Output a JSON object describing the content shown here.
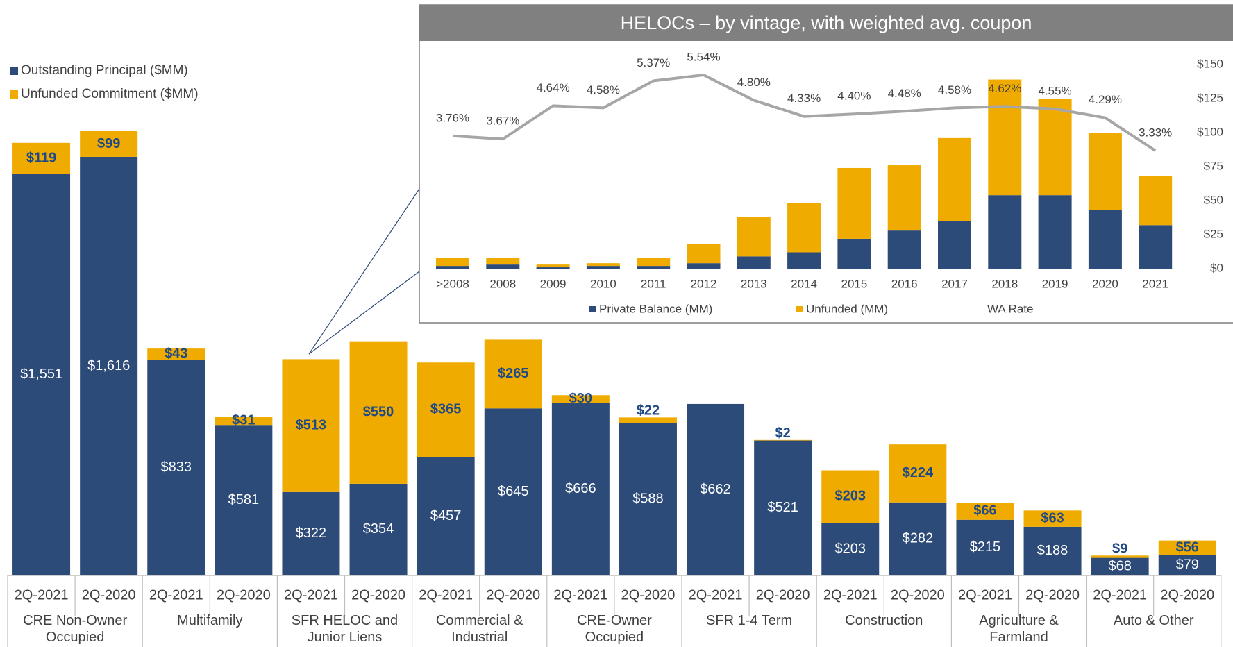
{
  "chart_data": [
    {
      "type": "bar",
      "stacked": true,
      "categories": [
        "2Q-2021",
        "2Q-2020",
        "2Q-2021",
        "2Q-2020",
        "2Q-2021",
        "2Q-2020",
        "2Q-2021",
        "2Q-2020",
        "2Q-2021",
        "2Q-2020",
        "2Q-2021",
        "2Q-2020",
        "2Q-2021",
        "2Q-2020",
        "2Q-2021",
        "2Q-2020",
        "2Q-2021",
        "2Q-2020"
      ],
      "groups": [
        "CRE Non-Owner Occupied",
        "Multifamily",
        "SFR HELOC and Junior Liens",
        "Commercial & Industrial",
        "CRE-Owner Occupied",
        "SFR 1-4 Term",
        "Construction",
        "Agriculture & Farmland",
        "Auto & Other"
      ],
      "legend": "top-left",
      "series": [
        {
          "name": "Outstanding Principal ($MM)",
          "color": "#2d4b78",
          "values": [
            1551,
            1616,
            833,
            581,
            322,
            354,
            457,
            645,
            666,
            588,
            662,
            521,
            203,
            282,
            215,
            188,
            68,
            79
          ],
          "value_labels": [
            "$1,551",
            "$1,616",
            "$833",
            "$581",
            "$322",
            "$354",
            "$457",
            "$645",
            "$666",
            "$588",
            "$662",
            "$521",
            "$203",
            "$282",
            "$215",
            "$188",
            "$68",
            "$79"
          ]
        },
        {
          "name": "Unfunded Commitment ($MM)",
          "color": "#f0ab00",
          "values": [
            119,
            99,
            43,
            31,
            513,
            550,
            365,
            265,
            30,
            22,
            null,
            2,
            203,
            224,
            66,
            63,
            9,
            56
          ],
          "value_labels": [
            "$119",
            "$99",
            "$43",
            "$31",
            "$513",
            "$550",
            "$365",
            "$265",
            "$30",
            "$22",
            null,
            "$2",
            "$203",
            "$224",
            "$66",
            "$63",
            "$9",
            "$56"
          ]
        }
      ]
    },
    {
      "type": "bar",
      "stacked": true,
      "title": "HELOCs – by vintage, with weighted avg. coupon",
      "categories": [
        ">2008",
        "2008",
        "2009",
        "2010",
        "2011",
        "2012",
        "2013",
        "2014",
        "2015",
        "2016",
        "2017",
        "2018",
        "2019",
        "2020",
        "2021"
      ],
      "ylim": [
        0,
        150
      ],
      "yticks": [
        {
          "value": 0,
          "label": "$0"
        },
        {
          "value": 25,
          "label": "$25"
        },
        {
          "value": 50,
          "label": "$50"
        },
        {
          "value": 75,
          "label": "$75"
        },
        {
          "value": 100,
          "label": "$100"
        },
        {
          "value": 125,
          "label": "$125"
        },
        {
          "value": 150,
          "label": "$150"
        }
      ],
      "legend": "bottom",
      "series": [
        {
          "name": "Private Balance (MM)",
          "color": "#2d4b78",
          "values": [
            2,
            3,
            1,
            2,
            2,
            4,
            9,
            12,
            22,
            28,
            35,
            54,
            54,
            43,
            32
          ]
        },
        {
          "name": "Unfunded (MM)",
          "color": "#f0ab00",
          "values": [
            6,
            5,
            2,
            2,
            6,
            14,
            29,
            36,
            52,
            48,
            61,
            85,
            71,
            57,
            36
          ]
        },
        {
          "name": "WA Rate",
          "type": "line",
          "axis": "y2",
          "color": "#a6a6a6",
          "values": [
            3.76,
            3.67,
            4.64,
            4.58,
            5.37,
            5.54,
            4.8,
            4.33,
            4.4,
            4.48,
            4.58,
            4.62,
            4.55,
            4.29,
            3.33
          ],
          "value_labels": [
            "3.76%",
            "3.67%",
            "4.64%",
            "4.58%",
            "5.37%",
            "5.54%",
            "4.80%",
            "4.33%",
            "4.40%",
            "4.48%",
            "4.58%",
            "4.62%",
            "4.55%",
            "4.29%",
            "3.33%"
          ]
        }
      ]
    }
  ]
}
